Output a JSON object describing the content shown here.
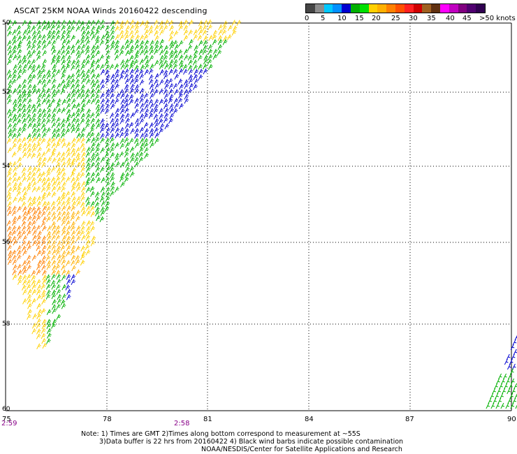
{
  "title": "ASCAT 25KM NOAA Winds 20160422 descending",
  "colorbar": {
    "colors": [
      "#454545",
      "#8c8c8c",
      "#00c8ff",
      "#0090ff",
      "#0000d0",
      "#00b000",
      "#00e000",
      "#ffd000",
      "#ffb000",
      "#ff8000",
      "#ff5000",
      "#ff2020",
      "#d00000",
      "#a06020",
      "#603010",
      "#ff00ff",
      "#c000c0",
      "#800080",
      "#500070",
      "#300050"
    ],
    "labels": [
      "0",
      "5",
      "10",
      "15",
      "20",
      "25",
      "30",
      "35",
      "40",
      "45",
      ">50 knots"
    ]
  },
  "lat_labels": [
    "50",
    "52",
    "54",
    "56",
    "58",
    "60"
  ],
  "lon_labels": [
    "75",
    "78",
    "81",
    "84",
    "87",
    "90"
  ],
  "time_labels": [
    "2:59",
    "2:58"
  ],
  "notes": {
    "line1": "Note: 1) Times are GMT 2)Times along bottom correspond to measurement at ~55S",
    "line2": "3)Data buffer is 22 hrs from 20160422 4) Black wind barbs indicate possible contamination",
    "line3": "NOAA/NESDIS/Center for Satellite Applications and Research"
  }
}
